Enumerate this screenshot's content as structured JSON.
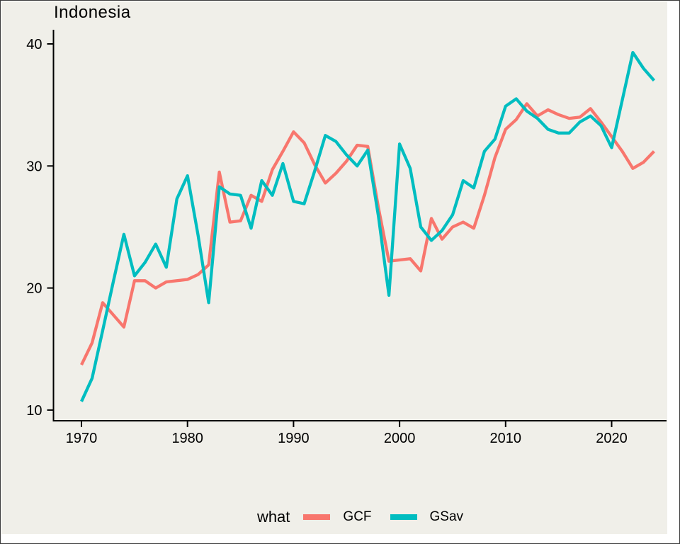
{
  "chart": {
    "title": "Indonesia",
    "legend": {
      "title": "what",
      "entries": [
        {
          "label": "GCF",
          "color": "#F8766D"
        },
        {
          "label": "GSav",
          "color": "#00BDC0"
        }
      ]
    }
  },
  "colors": {
    "panel_background": "#F0EFE9",
    "page_background": "#FFFFFF",
    "axis": "#000000",
    "gcf": "#F8766D",
    "gsav": "#00BDC0"
  },
  "chart_data": {
    "type": "line",
    "title": "Indonesia",
    "xlabel": "",
    "ylabel": "",
    "legend_title": "what",
    "legend_position": "bottom",
    "grid": false,
    "xlim": [
      1967.3,
      2025.5
    ],
    "ylim": [
      9.1,
      41.2
    ],
    "x_ticks": [
      1970,
      1980,
      1990,
      2000,
      2010,
      2020
    ],
    "y_ticks": [
      10,
      20,
      30,
      40
    ],
    "x": [
      1970,
      1971,
      1972,
      1973,
      1974,
      1975,
      1976,
      1977,
      1978,
      1979,
      1980,
      1981,
      1982,
      1983,
      1984,
      1985,
      1986,
      1987,
      1988,
      1989,
      1990,
      1991,
      1992,
      1993,
      1994,
      1995,
      1996,
      1997,
      1998,
      1999,
      2000,
      2001,
      2002,
      2003,
      2004,
      2005,
      2006,
      2007,
      2008,
      2009,
      2010,
      2011,
      2012,
      2013,
      2014,
      2015,
      2016,
      2017,
      2018,
      2019,
      2020,
      2021,
      2022,
      2023,
      2024
    ],
    "series": [
      {
        "name": "GCF",
        "color": "#F8766D",
        "values": [
          13.7,
          15.5,
          18.8,
          17.8,
          16.8,
          20.6,
          20.6,
          20.0,
          20.5,
          20.6,
          20.7,
          21.1,
          21.9,
          29.5,
          25.4,
          25.5,
          27.6,
          27.1,
          29.7,
          31.2,
          32.8,
          31.9,
          30.1,
          28.6,
          29.4,
          30.4,
          31.7,
          31.6,
          26.6,
          22.2,
          22.3,
          22.4,
          21.4,
          25.7,
          24.0,
          25.0,
          25.4,
          24.9,
          27.6,
          30.7,
          33.0,
          33.8,
          35.1,
          34.1,
          34.6,
          34.2,
          33.9,
          34.0,
          34.7,
          33.6,
          32.4,
          31.2,
          29.8,
          30.3,
          31.2
        ]
      },
      {
        "name": "GSav",
        "color": "#00BDC0",
        "values": [
          10.7,
          12.6,
          16.5,
          20.5,
          24.4,
          21.0,
          22.1,
          23.6,
          21.7,
          27.3,
          29.2,
          24.3,
          18.8,
          28.3,
          27.7,
          27.6,
          24.9,
          28.8,
          27.6,
          30.2,
          27.1,
          26.9,
          29.6,
          32.5,
          32.0,
          30.9,
          30.0,
          31.3,
          25.9,
          19.4,
          31.8,
          29.8,
          25.0,
          23.9,
          24.7,
          26.0,
          28.8,
          28.2,
          31.2,
          32.2,
          34.9,
          35.5,
          34.5,
          33.9,
          33.0,
          32.7,
          32.7,
          33.6,
          34.1,
          33.3,
          31.5,
          35.4,
          39.3,
          38.0,
          37.0
        ]
      }
    ]
  }
}
